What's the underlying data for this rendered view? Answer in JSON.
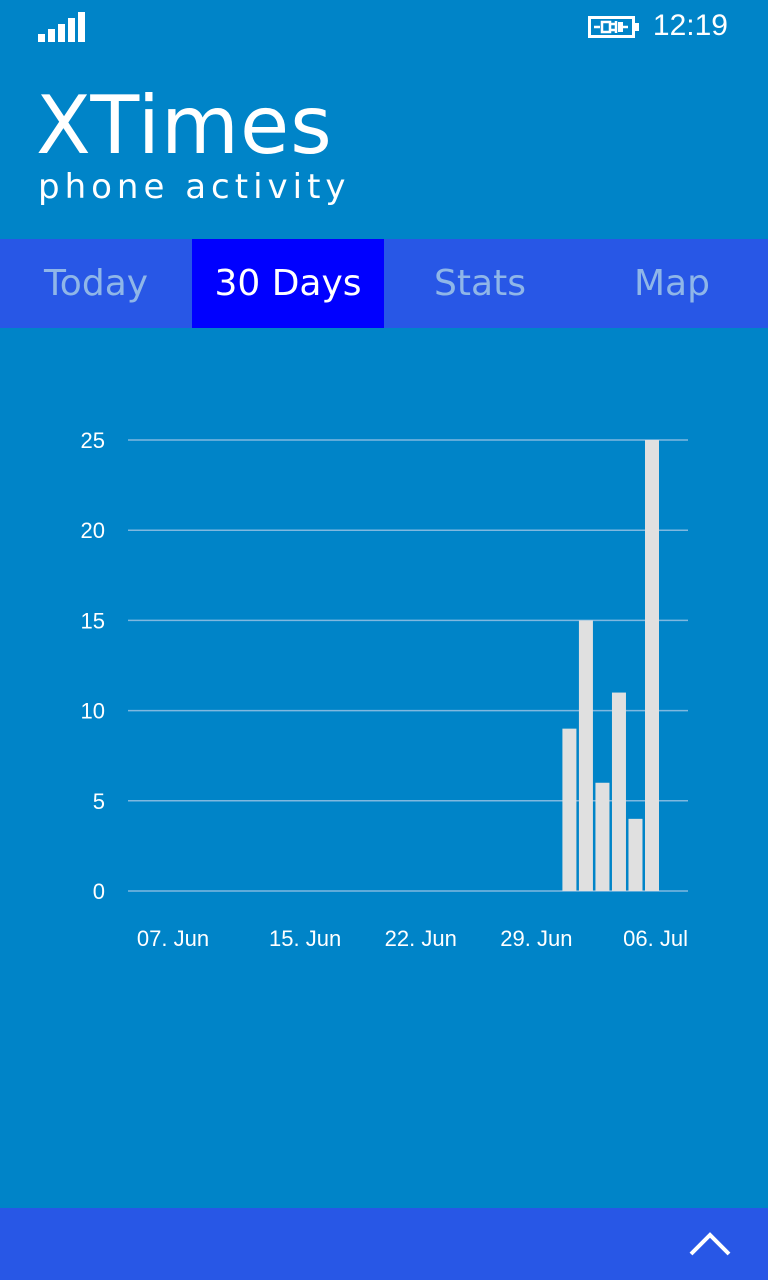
{
  "status_bar": {
    "time": "12:19",
    "icons": [
      "signal-strength-icon",
      "battery-charging-icon"
    ]
  },
  "header": {
    "title": "XTimes",
    "subtitle": "phone activity"
  },
  "tabs": [
    {
      "label": "Today",
      "active": false
    },
    {
      "label": "30 Days",
      "active": true
    },
    {
      "label": "Stats",
      "active": false
    },
    {
      "label": "Map",
      "active": false
    }
  ],
  "colors": {
    "background": "#0084c8",
    "tab_bar": "#2857e6",
    "tab_active": "#0000ff",
    "tab_inactive_text": "#8fb6e8",
    "bars": "#e0e0e0",
    "gridlines": "#7fb8e0"
  },
  "chart_data": {
    "type": "bar",
    "x_start_date": "2014-06-07",
    "x_end_date": "2014-07-06",
    "x_ticks": [
      "07. Jun",
      "15. Jun",
      "22. Jun",
      "29. Jun",
      "06. Jul"
    ],
    "y_ticks": [
      "0",
      "5",
      "10",
      "15",
      "20",
      "25"
    ],
    "ylim": [
      0,
      25
    ],
    "grid": true,
    "bars": [
      {
        "date": "01. Jul",
        "value": 9
      },
      {
        "date": "02. Jul",
        "value": 15
      },
      {
        "date": "03. Jul",
        "value": 6
      },
      {
        "date": "04. Jul",
        "value": 11
      },
      {
        "date": "05. Jul",
        "value": 4
      },
      {
        "date": "06. Jul",
        "value": 25
      }
    ]
  },
  "app_bar": {
    "icons": [
      "chevron-up-icon"
    ]
  }
}
